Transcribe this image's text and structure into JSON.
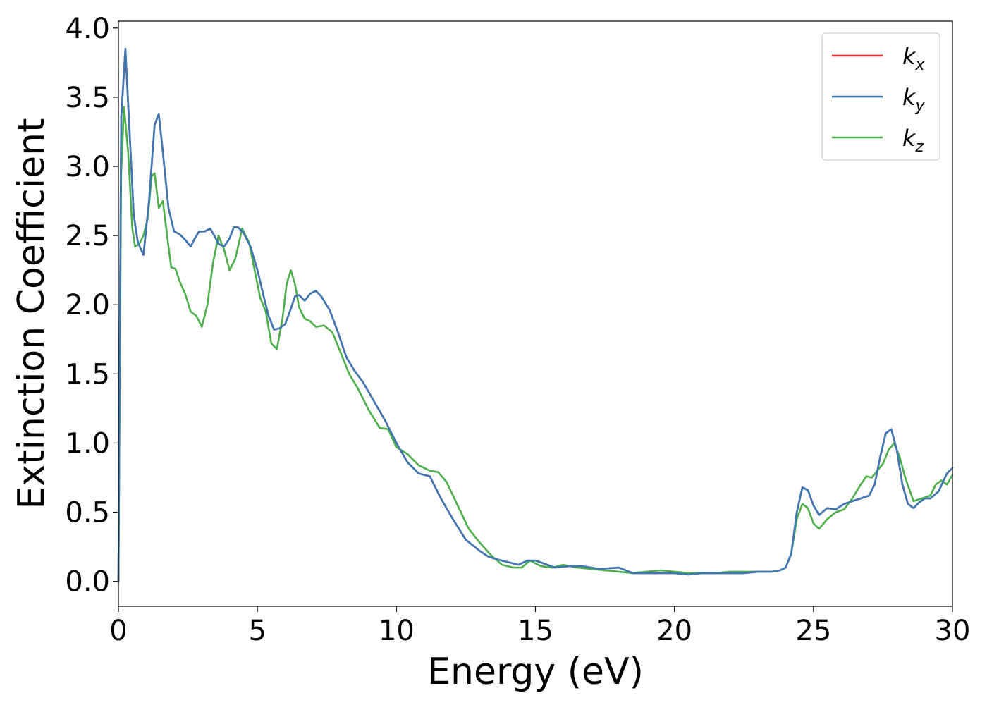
{
  "chart_data": {
    "type": "line",
    "title": "",
    "xlabel": "Energy (eV)",
    "ylabel": "Extinction Coefficient",
    "xlim": [
      0,
      30
    ],
    "ylim": [
      -0.18,
      4.05
    ],
    "xticks": [
      0,
      5,
      10,
      15,
      20,
      25,
      30
    ],
    "xtick_labels": [
      "0",
      "5",
      "10",
      "15",
      "20",
      "25",
      "30"
    ],
    "yticks": [
      0,
      0.5,
      1,
      1.5,
      2,
      2.5,
      3,
      3.5,
      4
    ],
    "ytick_labels": [
      "0.0",
      "0.5",
      "1.0",
      "1.5",
      "2.0",
      "2.5",
      "3.0",
      "3.5",
      "4.0"
    ],
    "grid": false,
    "legend": {
      "position": "top-right"
    },
    "series": [
      {
        "name": "k",
        "subscript": "x",
        "color": "#d62728",
        "x": [
          0,
          0.1,
          0.25,
          0.4,
          0.55,
          0.7,
          0.9,
          1.1,
          1.3,
          1.45,
          1.6,
          1.8,
          2.0,
          2.2,
          2.4,
          2.6,
          2.75,
          2.9,
          3.1,
          3.3,
          3.45,
          3.6,
          3.8,
          4.0,
          4.15,
          4.3,
          4.5,
          4.75,
          5.0,
          5.2,
          5.4,
          5.6,
          5.8,
          6.0,
          6.2,
          6.35,
          6.5,
          6.7,
          6.9,
          7.1,
          7.3,
          7.6,
          7.9,
          8.2,
          8.5,
          8.8,
          9.2,
          9.6,
          10.0,
          10.4,
          10.8,
          11.2,
          11.6,
          12.0,
          12.5,
          13.0,
          13.3,
          13.6,
          14.0,
          14.4,
          14.7,
          15.0,
          15.3,
          15.7,
          16.2,
          16.7,
          17.3,
          18.0,
          18.5,
          19.0,
          19.5,
          20.0,
          20.5,
          21.0,
          21.5,
          22.0,
          22.5,
          23.0,
          23.5,
          23.8,
          24.0,
          24.2,
          24.4,
          24.6,
          24.8,
          25.0,
          25.2,
          25.5,
          25.8,
          26.1,
          26.4,
          26.7,
          27.0,
          27.2,
          27.4,
          27.6,
          27.8,
          28.0,
          28.2,
          28.4,
          28.6,
          28.8,
          29.0,
          29.2,
          29.5,
          29.8,
          30.0
        ],
        "values": [
          0.0,
          3.35,
          3.85,
          3.25,
          2.65,
          2.45,
          2.36,
          2.75,
          3.3,
          3.38,
          3.1,
          2.7,
          2.53,
          2.51,
          2.47,
          2.42,
          2.48,
          2.53,
          2.53,
          2.55,
          2.5,
          2.44,
          2.42,
          2.48,
          2.56,
          2.56,
          2.52,
          2.42,
          2.25,
          2.08,
          1.92,
          1.82,
          1.83,
          1.86,
          1.97,
          2.06,
          2.07,
          2.03,
          2.08,
          2.1,
          2.06,
          1.96,
          1.8,
          1.62,
          1.52,
          1.44,
          1.3,
          1.16,
          1.0,
          0.86,
          0.78,
          0.76,
          0.6,
          0.46,
          0.3,
          0.22,
          0.18,
          0.16,
          0.14,
          0.12,
          0.15,
          0.15,
          0.13,
          0.1,
          0.11,
          0.11,
          0.09,
          0.1,
          0.06,
          0.06,
          0.06,
          0.06,
          0.05,
          0.06,
          0.06,
          0.06,
          0.06,
          0.07,
          0.07,
          0.08,
          0.1,
          0.2,
          0.5,
          0.68,
          0.66,
          0.55,
          0.48,
          0.53,
          0.52,
          0.56,
          0.58,
          0.6,
          0.62,
          0.7,
          0.9,
          1.07,
          1.1,
          0.95,
          0.7,
          0.56,
          0.53,
          0.57,
          0.6,
          0.6,
          0.65,
          0.78,
          0.82
        ]
      },
      {
        "name": "k",
        "subscript": "y",
        "color": "#3c78b4",
        "x": [
          0,
          0.1,
          0.25,
          0.4,
          0.55,
          0.7,
          0.9,
          1.1,
          1.3,
          1.45,
          1.6,
          1.8,
          2.0,
          2.2,
          2.4,
          2.6,
          2.75,
          2.9,
          3.1,
          3.3,
          3.45,
          3.6,
          3.8,
          4.0,
          4.15,
          4.3,
          4.5,
          4.75,
          5.0,
          5.2,
          5.4,
          5.6,
          5.8,
          6.0,
          6.2,
          6.35,
          6.5,
          6.7,
          6.9,
          7.1,
          7.3,
          7.6,
          7.9,
          8.2,
          8.5,
          8.8,
          9.2,
          9.6,
          10.0,
          10.4,
          10.8,
          11.2,
          11.6,
          12.0,
          12.5,
          13.0,
          13.3,
          13.6,
          14.0,
          14.4,
          14.7,
          15.0,
          15.3,
          15.7,
          16.2,
          16.7,
          17.3,
          18.0,
          18.5,
          19.0,
          19.5,
          20.0,
          20.5,
          21.0,
          21.5,
          22.0,
          22.5,
          23.0,
          23.5,
          23.8,
          24.0,
          24.2,
          24.4,
          24.6,
          24.8,
          25.0,
          25.2,
          25.5,
          25.8,
          26.1,
          26.4,
          26.7,
          27.0,
          27.2,
          27.4,
          27.6,
          27.8,
          28.0,
          28.2,
          28.4,
          28.6,
          28.8,
          29.0,
          29.2,
          29.5,
          29.8,
          30.0
        ],
        "values": [
          0.0,
          3.35,
          3.85,
          3.25,
          2.65,
          2.45,
          2.36,
          2.75,
          3.3,
          3.38,
          3.1,
          2.7,
          2.53,
          2.51,
          2.47,
          2.42,
          2.48,
          2.53,
          2.53,
          2.55,
          2.5,
          2.44,
          2.42,
          2.48,
          2.56,
          2.56,
          2.52,
          2.42,
          2.25,
          2.08,
          1.92,
          1.82,
          1.83,
          1.86,
          1.97,
          2.06,
          2.07,
          2.03,
          2.08,
          2.1,
          2.06,
          1.96,
          1.8,
          1.62,
          1.52,
          1.44,
          1.3,
          1.16,
          1.0,
          0.86,
          0.78,
          0.76,
          0.6,
          0.46,
          0.3,
          0.22,
          0.18,
          0.16,
          0.14,
          0.12,
          0.15,
          0.15,
          0.13,
          0.1,
          0.11,
          0.11,
          0.09,
          0.1,
          0.06,
          0.06,
          0.06,
          0.06,
          0.05,
          0.06,
          0.06,
          0.06,
          0.06,
          0.07,
          0.07,
          0.08,
          0.1,
          0.2,
          0.5,
          0.68,
          0.66,
          0.55,
          0.48,
          0.53,
          0.52,
          0.56,
          0.58,
          0.6,
          0.62,
          0.7,
          0.9,
          1.07,
          1.1,
          0.95,
          0.7,
          0.56,
          0.53,
          0.57,
          0.6,
          0.6,
          0.65,
          0.78,
          0.82
        ]
      },
      {
        "name": "k",
        "subscript": "z",
        "color": "#4daf4a",
        "x": [
          0,
          0.1,
          0.2,
          0.35,
          0.5,
          0.6,
          0.75,
          0.9,
          1.05,
          1.2,
          1.3,
          1.45,
          1.6,
          1.75,
          1.9,
          2.05,
          2.2,
          2.4,
          2.6,
          2.8,
          3.0,
          3.2,
          3.4,
          3.6,
          3.8,
          4.0,
          4.2,
          4.45,
          4.7,
          4.9,
          5.1,
          5.3,
          5.5,
          5.7,
          5.9,
          6.05,
          6.2,
          6.35,
          6.5,
          6.7,
          6.9,
          7.1,
          7.4,
          7.7,
          8.0,
          8.3,
          8.6,
          9.0,
          9.4,
          9.7,
          10.0,
          10.4,
          10.8,
          11.2,
          11.5,
          11.8,
          12.2,
          12.6,
          13.0,
          13.4,
          13.8,
          14.2,
          14.5,
          14.8,
          15.2,
          15.6,
          16.0,
          16.5,
          17.0,
          17.5,
          18.0,
          18.5,
          19.0,
          19.5,
          20.0,
          20.5,
          21.0,
          21.5,
          22.0,
          22.5,
          23.0,
          23.5,
          23.8,
          24.0,
          24.2,
          24.4,
          24.6,
          24.8,
          25.0,
          25.2,
          25.5,
          25.8,
          26.1,
          26.4,
          26.7,
          26.9,
          27.1,
          27.3,
          27.5,
          27.7,
          27.9,
          28.1,
          28.3,
          28.6,
          28.9,
          29.2,
          29.4,
          29.6,
          29.8,
          30.0
        ],
        "values": [
          0.0,
          2.95,
          3.43,
          3.1,
          2.55,
          2.42,
          2.44,
          2.5,
          2.62,
          2.93,
          2.95,
          2.7,
          2.75,
          2.5,
          2.27,
          2.26,
          2.17,
          2.08,
          1.95,
          1.92,
          1.84,
          2.0,
          2.3,
          2.5,
          2.4,
          2.25,
          2.33,
          2.55,
          2.45,
          2.25,
          2.05,
          1.95,
          1.72,
          1.68,
          1.9,
          2.15,
          2.25,
          2.15,
          1.98,
          1.9,
          1.88,
          1.84,
          1.85,
          1.8,
          1.65,
          1.5,
          1.4,
          1.24,
          1.11,
          1.1,
          0.97,
          0.92,
          0.84,
          0.8,
          0.79,
          0.72,
          0.55,
          0.38,
          0.28,
          0.19,
          0.12,
          0.1,
          0.1,
          0.15,
          0.11,
          0.1,
          0.12,
          0.1,
          0.09,
          0.08,
          0.07,
          0.06,
          0.07,
          0.08,
          0.07,
          0.06,
          0.06,
          0.06,
          0.07,
          0.07,
          0.07,
          0.07,
          0.08,
          0.1,
          0.2,
          0.45,
          0.56,
          0.53,
          0.42,
          0.38,
          0.45,
          0.5,
          0.52,
          0.6,
          0.7,
          0.76,
          0.75,
          0.8,
          0.85,
          0.95,
          1.0,
          0.9,
          0.75,
          0.58,
          0.6,
          0.62,
          0.7,
          0.73,
          0.7,
          0.77
        ]
      }
    ]
  }
}
